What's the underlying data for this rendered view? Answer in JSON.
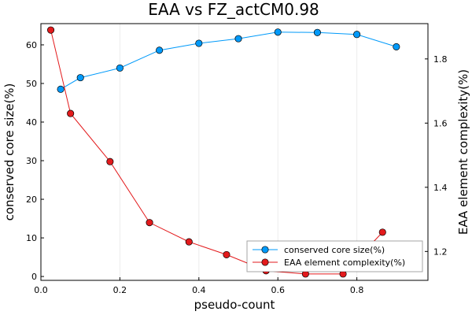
{
  "chart_data": {
    "type": "line",
    "title": "EAA vs FZ_actCM0.98",
    "xlabel": "pseudo-count",
    "ylabel_left": "conserved core size(%)",
    "ylabel_right": "EAA element complexity(%)",
    "xlim": [
      0.0,
      0.98
    ],
    "ylim_left": [
      -1,
      65.5
    ],
    "ylim_right": [
      1.11,
      1.91
    ],
    "x_ticks": [
      0.0,
      0.2,
      0.4,
      0.6,
      0.8
    ],
    "x_tick_labels": [
      "0.0",
      "0.2",
      "0.4",
      "0.6",
      "0.8"
    ],
    "y_left_ticks": [
      0,
      10,
      20,
      30,
      40,
      50,
      60
    ],
    "y_left_tick_labels": [
      "0",
      "10",
      "20",
      "30",
      "40",
      "50",
      "60"
    ],
    "y_right_ticks": [
      1.2,
      1.4,
      1.6,
      1.8
    ],
    "y_right_tick_labels": [
      "1.2",
      "1.4",
      "1.6",
      "1.8"
    ],
    "grid": "vertical",
    "legend_position": "bottom-right",
    "series": [
      {
        "name": "conserved core size(%)",
        "axis": "left",
        "color": "#009AFA",
        "x": [
          0.05,
          0.1,
          0.2,
          0.3,
          0.4,
          0.5,
          0.6,
          0.7,
          0.8,
          0.9
        ],
        "y": [
          48.5,
          51.5,
          54.0,
          58.6,
          60.4,
          61.6,
          63.3,
          63.2,
          62.7,
          59.5
        ]
      },
      {
        "name": "EAA element complexity(%)",
        "axis": "right",
        "color": "#E31A1C",
        "x": [
          0.025,
          0.075,
          0.175,
          0.275,
          0.375,
          0.47,
          0.57,
          0.67,
          0.765,
          0.865
        ],
        "y": [
          1.89,
          1.63,
          1.48,
          1.29,
          1.23,
          1.19,
          1.14,
          1.13,
          1.13,
          1.26
        ]
      }
    ]
  }
}
